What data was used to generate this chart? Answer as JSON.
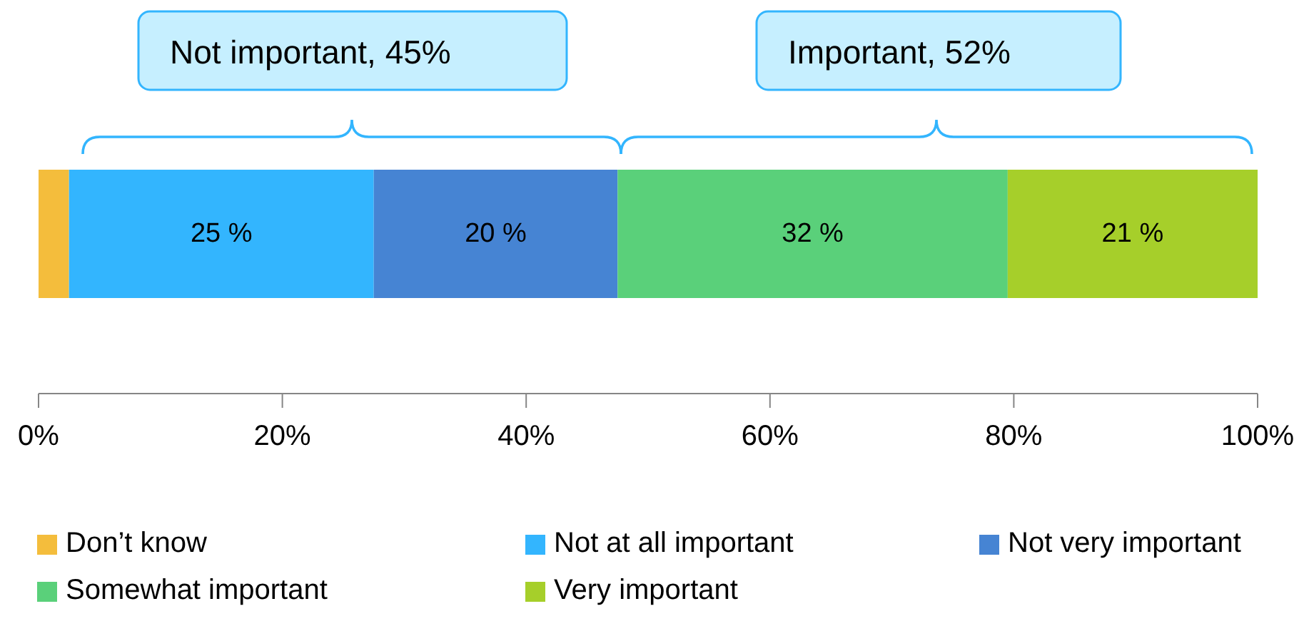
{
  "chart_data": {
    "type": "bar",
    "orientation": "horizontal",
    "stacked": true,
    "categories": [
      null
    ],
    "series": [
      {
        "name": "Don’t know",
        "color": "#f4bd3c",
        "values": [
          2.5
        ]
      },
      {
        "name": "Not at all important",
        "color": "#33b5fe",
        "values": [
          25
        ],
        "value_labels": [
          "25 %"
        ]
      },
      {
        "name": "Not very important",
        "color": "#4684d3",
        "values": [
          20
        ],
        "value_labels": [
          "20 %"
        ]
      },
      {
        "name": "Somewhat important",
        "color": "#5ad07a",
        "values": [
          32
        ],
        "value_labels": [
          "32 %"
        ]
      },
      {
        "name": "Very important",
        "color": "#a6cf2a",
        "values": [
          20.5
        ],
        "value_labels": [
          "21 %"
        ]
      }
    ],
    "xlim": [
      0,
      100
    ],
    "xticks": [
      {
        "value": 0,
        "label": "0%"
      },
      {
        "value": 20,
        "label": "20%"
      },
      {
        "value": 40,
        "label": "40%"
      },
      {
        "value": 60,
        "label": "60%"
      },
      {
        "value": 80,
        "label": "80%"
      },
      {
        "value": 100,
        "label": "100%"
      }
    ],
    "annotations": [
      "Not important, 45%",
      "Important, 52%"
    ],
    "legend": "bottom",
    "grid": false
  }
}
